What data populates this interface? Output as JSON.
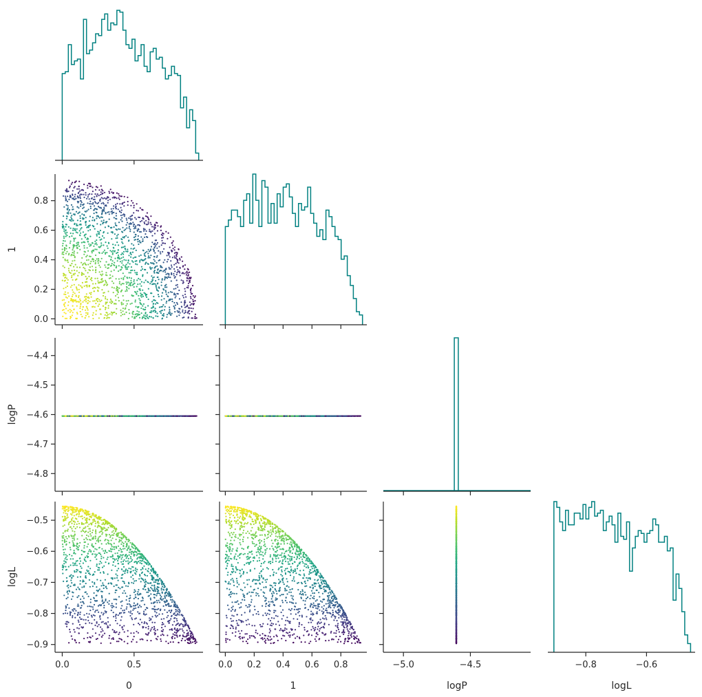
{
  "chart_data": {
    "type": "corner",
    "parameters": [
      {
        "key": "p0",
        "label": "0",
        "range": [
          -0.05,
          0.98
        ],
        "ticks": [
          0.0,
          0.5
        ],
        "tick_labels": [
          "0.0",
          "0.5"
        ]
      },
      {
        "key": "p1",
        "label": "1",
        "range": [
          -0.04,
          0.98
        ],
        "ticks": [
          0.0,
          0.2,
          0.4,
          0.6,
          0.8
        ],
        "tick_labels": [
          "0.0",
          "0.2",
          "0.4",
          "0.6",
          "0.8"
        ]
      },
      {
        "key": "logP",
        "label": "logP",
        "range": [
          -5.15,
          -4.05
        ],
        "ticks": [
          -5.0,
          -4.5
        ],
        "tick_labels": [
          "−5.0",
          "−4.5"
        ],
        "row_range": [
          -4.86,
          -4.34
        ],
        "row_ticks": [
          -4.8,
          -4.7,
          -4.6,
          -4.5,
          -4.4
        ],
        "row_tick_labels": [
          "−4.8",
          "−4.7",
          "−4.6",
          "−4.5",
          "−4.4"
        ]
      },
      {
        "key": "logL",
        "label": "logL",
        "range": [
          -0.925,
          -0.44
        ],
        "ticks": [
          -0.8,
          -0.6
        ],
        "tick_labels": [
          "−0.8",
          "−0.6"
        ],
        "row_range": [
          -0.925,
          -0.44
        ],
        "row_ticks": [
          -0.9,
          -0.8,
          -0.7,
          -0.6,
          -0.5
        ],
        "row_tick_labels": [
          "−0.9",
          "−0.8",
          "−0.7",
          "−0.6",
          "−0.5"
        ]
      }
    ],
    "constant_logP": -4.605,
    "histograms": {
      "p0": {
        "edges_range": [
          0.0,
          0.95
        ],
        "counts": [
          48,
          49,
          64,
          53,
          55,
          56,
          45,
          78,
          59,
          61,
          65,
          70,
          69,
          78,
          81,
          72,
          76,
          75,
          83,
          82,
          72,
          64,
          62,
          67,
          55,
          58,
          64,
          52,
          49,
          60,
          62,
          56,
          57,
          51,
          45,
          47,
          52,
          48,
          47,
          29,
          35,
          18,
          28,
          22,
          4
        ]
      },
      "p1": {
        "edges_range": [
          0.0,
          0.95
        ],
        "counts": [
          30,
          32,
          35,
          35,
          33,
          30,
          38,
          40,
          31,
          46,
          38,
          30,
          44,
          42,
          31,
          37,
          31,
          40,
          36,
          42,
          43,
          39,
          34,
          30,
          37,
          35,
          36,
          42,
          34,
          31,
          27,
          29,
          26,
          35,
          33,
          30,
          27,
          26,
          20,
          21,
          15,
          12,
          8,
          4,
          3
        ]
      },
      "logP": {
        "edges_range": [
          -4.62,
          -4.59
        ],
        "counts": [
          1
        ]
      },
      "logL": {
        "edges_range": [
          -0.905,
          -0.455
        ],
        "counts": [
          52,
          50,
          45,
          42,
          49,
          44,
          44,
          48,
          48,
          46,
          51,
          46,
          50,
          52,
          47,
          48,
          49,
          42,
          45,
          47,
          44,
          38,
          48,
          40,
          39,
          45,
          28,
          36,
          40,
          42,
          41,
          38,
          41,
          42,
          46,
          44,
          38,
          38,
          40,
          35,
          36,
          18,
          27,
          22,
          14,
          6,
          3
        ]
      }
    },
    "scatter_samples": 1800,
    "colormap": "viridis",
    "color_by": "logL",
    "hist_color": "#008080",
    "grid": false,
    "legend": "none",
    "panels": "lower-triangle"
  }
}
